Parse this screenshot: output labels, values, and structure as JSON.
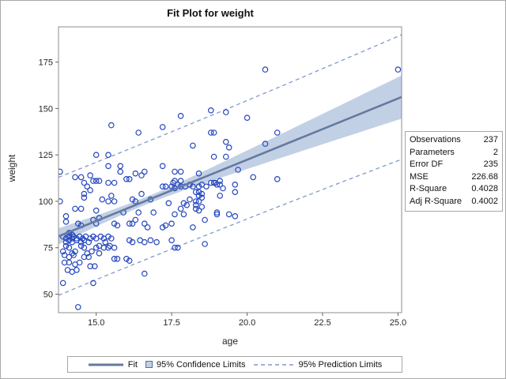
{
  "title": "Fit Plot for weight",
  "stats_table": {
    "rows": [
      {
        "label": "Observations",
        "value": "237"
      },
      {
        "label": "Parameters",
        "value": "2"
      },
      {
        "label": "Error DF",
        "value": "235"
      },
      {
        "label": "MSE",
        "value": "226.68"
      },
      {
        "label": "R-Square",
        "value": "0.4028"
      },
      {
        "label": "Adj R-Square",
        "value": "0.4002"
      }
    ]
  },
  "legend": {
    "fit_label": "Fit",
    "ci_label": "95% Confidence Limits",
    "pi_label": "95% Prediction Limits"
  },
  "colors": {
    "marker": "#2546be",
    "fit_line": "#66799e",
    "ci_fill": "#c2d0e6",
    "ci_swatch_border": "#5a6d94",
    "pi_line": "#8099cc",
    "plot_border": "#8e8e8e",
    "tick": "#616161",
    "tick_text": "#262626"
  },
  "chart_data": {
    "type": "scatter",
    "title": "Fit Plot for weight",
    "xlabel": "age",
    "ylabel": "weight",
    "x_ticks": [
      15.0,
      17.5,
      20.0,
      22.5,
      25.0
    ],
    "x_tick_labels": [
      "15.0",
      "17.5",
      "20.0",
      "22.5",
      "25.0"
    ],
    "y_ticks": [
      50,
      75,
      100,
      125,
      150,
      175
    ],
    "y_tick_labels": [
      "50",
      "75",
      "100",
      "125",
      "150",
      "175"
    ],
    "xlim": [
      13.75,
      25.12
    ],
    "ylim": [
      40,
      194
    ],
    "grid": false,
    "legend_position": "bottom",
    "fit_model": {
      "intercept": -9.6,
      "slope": 6.6,
      "t_times_s": 31.5,
      "n": 237,
      "mean_x": 16.6,
      "sxx": 550
    },
    "points": [
      [
        13.9,
        81
      ],
      [
        14.0,
        80
      ],
      [
        14.1,
        81
      ],
      [
        14.2,
        80
      ],
      [
        14.25,
        81
      ],
      [
        14.35,
        80
      ],
      [
        14.45,
        81
      ],
      [
        14.55,
        80
      ],
      [
        14.65,
        81
      ],
      [
        14.8,
        80
      ],
      [
        14.9,
        81
      ],
      [
        15.0,
        80
      ],
      [
        15.15,
        81
      ],
      [
        15.25,
        80
      ],
      [
        15.4,
        81
      ],
      [
        15.5,
        80
      ],
      [
        14.0,
        78
      ],
      [
        14.1,
        79
      ],
      [
        14.2,
        78
      ],
      [
        14.35,
        79
      ],
      [
        14.5,
        78
      ],
      [
        14.6,
        79
      ],
      [
        14.75,
        78
      ],
      [
        15.3,
        78
      ],
      [
        15.45,
        76
      ],
      [
        15.6,
        75
      ],
      [
        16.1,
        79
      ],
      [
        16.2,
        78
      ],
      [
        16.45,
        79
      ],
      [
        16.6,
        78
      ],
      [
        16.8,
        79
      ],
      [
        17.0,
        78
      ],
      [
        17.5,
        79
      ],
      [
        14.0,
        76
      ],
      [
        14.1,
        75
      ],
      [
        14.5,
        76
      ],
      [
        14.6,
        75
      ],
      [
        15.0,
        75
      ],
      [
        15.1,
        76
      ],
      [
        15.25,
        75
      ],
      [
        15.4,
        75
      ],
      [
        13.9,
        73
      ],
      [
        14.2,
        72
      ],
      [
        14.3,
        73
      ],
      [
        14.7,
        72
      ],
      [
        14.85,
        73
      ],
      [
        15.1,
        72
      ],
      [
        13.95,
        71
      ],
      [
        14.1,
        70
      ],
      [
        14.25,
        71
      ],
      [
        14.6,
        70
      ],
      [
        14.75,
        70
      ],
      [
        13.95,
        67
      ],
      [
        14.1,
        67
      ],
      [
        14.3,
        66
      ],
      [
        14.45,
        67
      ],
      [
        14.8,
        65
      ],
      [
        14.95,
        65
      ],
      [
        14.05,
        63
      ],
      [
        14.2,
        62
      ],
      [
        14.35,
        63
      ],
      [
        15.6,
        69
      ],
      [
        15.7,
        69
      ],
      [
        16.0,
        69
      ],
      [
        16.1,
        68
      ],
      [
        16.6,
        61
      ],
      [
        17.6,
        75
      ],
      [
        17.7,
        75
      ],
      [
        18.6,
        77
      ],
      [
        13.9,
        56
      ],
      [
        14.9,
        56
      ],
      [
        14.4,
        43
      ],
      [
        14.1,
        83
      ],
      [
        14.2,
        82
      ],
      [
        14.0,
        92
      ],
      [
        14.0,
        89
      ],
      [
        14.4,
        88
      ],
      [
        14.5,
        87
      ],
      [
        14.9,
        90
      ],
      [
        15.0,
        88
      ],
      [
        15.1,
        91
      ],
      [
        15.6,
        88
      ],
      [
        15.7,
        87
      ],
      [
        16.1,
        88
      ],
      [
        16.2,
        88
      ],
      [
        16.3,
        90
      ],
      [
        16.6,
        88
      ],
      [
        16.7,
        86
      ],
      [
        17.2,
        86
      ],
      [
        17.3,
        87
      ],
      [
        17.5,
        88
      ],
      [
        14.3,
        96
      ],
      [
        14.5,
        96
      ],
      [
        15.0,
        95
      ],
      [
        15.9,
        94
      ],
      [
        16.4,
        94
      ],
      [
        16.9,
        94
      ],
      [
        17.4,
        99
      ],
      [
        14.6,
        104
      ],
      [
        14.6,
        102
      ],
      [
        15.2,
        101
      ],
      [
        15.4,
        100
      ],
      [
        15.6,
        100
      ],
      [
        15.5,
        103
      ],
      [
        16.2,
        101
      ],
      [
        16.3,
        100
      ],
      [
        16.5,
        104
      ],
      [
        16.8,
        101
      ],
      [
        17.9,
        99
      ],
      [
        18.0,
        98
      ],
      [
        18.3,
        98
      ],
      [
        18.5,
        97
      ],
      [
        17.8,
        96
      ],
      [
        18.1,
        101
      ],
      [
        18.3,
        100
      ],
      [
        18.4,
        100
      ],
      [
        18.4,
        103
      ],
      [
        18.5,
        102
      ],
      [
        19.0,
        94
      ],
      [
        19.4,
        93
      ],
      [
        17.6,
        93
      ],
      [
        17.9,
        93
      ],
      [
        18.3,
        96
      ],
      [
        18.4,
        95
      ],
      [
        19.0,
        93
      ],
      [
        19.6,
        92
      ],
      [
        18.6,
        90
      ],
      [
        18.2,
        86
      ],
      [
        18.3,
        105
      ],
      [
        18.4,
        105
      ],
      [
        18.5,
        104
      ],
      [
        19.1,
        103
      ],
      [
        19.2,
        107
      ],
      [
        19.6,
        105
      ],
      [
        14.3,
        113
      ],
      [
        14.5,
        113
      ],
      [
        14.8,
        114
      ],
      [
        14.9,
        111
      ],
      [
        15.0,
        111
      ],
      [
        15.1,
        111
      ],
      [
        14.6,
        110
      ],
      [
        14.7,
        108
      ],
      [
        14.8,
        106
      ],
      [
        15.4,
        110
      ],
      [
        15.6,
        110
      ],
      [
        16.0,
        112
      ],
      [
        16.1,
        112
      ],
      [
        16.3,
        115
      ],
      [
        16.5,
        114
      ],
      [
        16.6,
        116
      ],
      [
        17.2,
        108
      ],
      [
        17.3,
        108
      ],
      [
        17.5,
        108
      ],
      [
        17.6,
        107
      ],
      [
        17.55,
        110
      ],
      [
        17.7,
        109
      ],
      [
        17.8,
        108
      ],
      [
        17.95,
        108
      ],
      [
        18.1,
        109
      ],
      [
        18.2,
        108
      ],
      [
        18.4,
        108
      ],
      [
        18.5,
        109
      ],
      [
        18.65,
        108
      ],
      [
        18.8,
        110
      ],
      [
        18.95,
        110
      ],
      [
        19.1,
        111
      ],
      [
        18.9,
        110
      ],
      [
        19.0,
        109
      ],
      [
        19.1,
        109
      ],
      [
        19.6,
        109
      ],
      [
        20.2,
        113
      ],
      [
        21.0,
        112
      ],
      [
        17.6,
        111
      ],
      [
        17.8,
        111
      ],
      [
        17.6,
        116
      ],
      [
        17.8,
        116
      ],
      [
        18.4,
        115
      ],
      [
        19.7,
        117
      ],
      [
        13.8,
        116
      ],
      [
        13.8,
        100
      ],
      [
        15.0,
        125
      ],
      [
        15.4,
        125
      ],
      [
        15.4,
        119
      ],
      [
        15.8,
        119
      ],
      [
        17.2,
        119
      ],
      [
        15.8,
        116
      ],
      [
        18.2,
        130
      ],
      [
        18.9,
        124
      ],
      [
        19.3,
        124
      ],
      [
        19.4,
        129
      ],
      [
        19.3,
        132
      ],
      [
        20.6,
        131
      ],
      [
        15.5,
        141
      ],
      [
        16.4,
        137
      ],
      [
        17.2,
        140
      ],
      [
        17.8,
        146
      ],
      [
        18.8,
        149
      ],
      [
        19.3,
        148
      ],
      [
        20.0,
        145
      ],
      [
        18.8,
        137
      ],
      [
        18.9,
        137
      ],
      [
        21.0,
        137
      ],
      [
        20.6,
        171
      ],
      [
        25.0,
        171
      ]
    ]
  }
}
